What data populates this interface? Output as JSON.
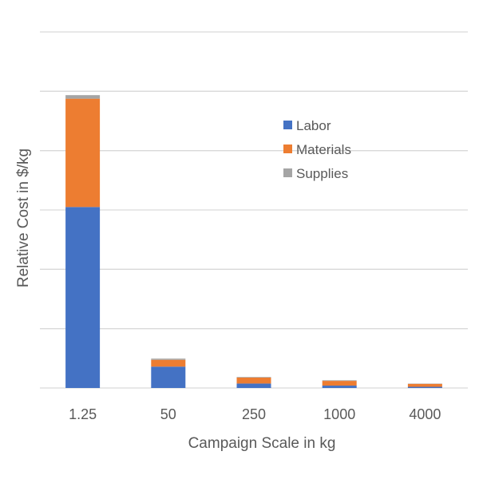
{
  "chart_data": {
    "type": "bar",
    "stacked": true,
    "title": "",
    "xlabel": "Campaign Scale in kg",
    "ylabel": "Relative Cost in $/kg",
    "categories": [
      "1.25",
      "50",
      "250",
      "1000",
      "4000"
    ],
    "series": [
      {
        "name": "Labor",
        "color": "#4472c4",
        "values": [
          61,
          7.2,
          1.5,
          0.8,
          0.4
        ]
      },
      {
        "name": "Materials",
        "color": "#ed7d31",
        "values": [
          36.5,
          2.3,
          2.0,
          1.6,
          1.0
        ]
      },
      {
        "name": "Supplies",
        "color": "#a5a5a5",
        "values": [
          1.2,
          0.4,
          0.2,
          0.2,
          0.1
        ]
      }
    ],
    "ylim": [
      0,
      120
    ],
    "grid": true,
    "y_tick_labels_shown": false,
    "legend_position": "top-right inside plot"
  }
}
